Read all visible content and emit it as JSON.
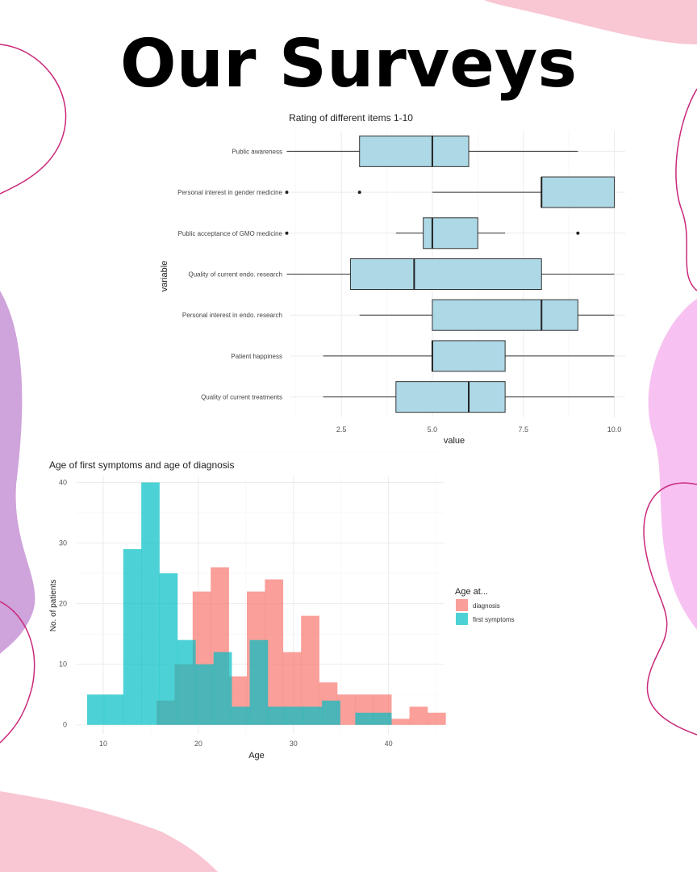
{
  "page": {
    "title": "Our Surveys"
  },
  "colors": {
    "box_fill": "#add8e6",
    "diagnosis": "#f8766d",
    "first_symptoms": "#00bfc4",
    "blob_pink": "#f9c6d3",
    "blob_violet": "#cfa3db",
    "blob_magenta": "#f7c2f1",
    "line_magenta": "#c9287a"
  },
  "chart_data": [
    {
      "type": "boxplot",
      "title": "Rating of different items 1-10",
      "xlabel": "value",
      "ylabel": "variable",
      "xlim": [
        1.1,
        10.3
      ],
      "xticks": [
        "2.5",
        "5.0",
        "7.5",
        "10.0"
      ],
      "grid": true,
      "categories": [
        "Public awareness",
        "Personal interest in gender medicine",
        "Public acceptance of GMO medicine",
        "Quality of current endo. research",
        "Personal interest in endo. research",
        "Patient happiness",
        "Quality of current treatments"
      ],
      "boxes": [
        {
          "whisker_low": 1.0,
          "q1": 3.0,
          "median": 5.0,
          "q3": 6.0,
          "whisker_high": 9.0,
          "outliers": []
        },
        {
          "whisker_low": 5.0,
          "q1": 8.0,
          "median": 8.0,
          "q3": 10.0,
          "whisker_high": 10.0,
          "outliers": [
            1.0,
            3.0
          ]
        },
        {
          "whisker_low": 4.0,
          "q1": 4.75,
          "median": 5.0,
          "q3": 6.25,
          "whisker_high": 7.0,
          "outliers": [
            1.0,
            9.0
          ]
        },
        {
          "whisker_low": 1.0,
          "q1": 2.75,
          "median": 4.5,
          "q3": 8.0,
          "whisker_high": 10.0,
          "outliers": []
        },
        {
          "whisker_low": 3.0,
          "q1": 5.0,
          "median": 8.0,
          "q3": 9.0,
          "whisker_high": 10.0,
          "outliers": []
        },
        {
          "whisker_low": 2.0,
          "q1": 5.0,
          "median": 5.0,
          "q3": 7.0,
          "whisker_high": 10.0,
          "outliers": []
        },
        {
          "whisker_low": 2.0,
          "q1": 4.0,
          "median": 6.0,
          "q3": 7.0,
          "whisker_high": 10.0,
          "outliers": []
        }
      ]
    },
    {
      "type": "histogram",
      "title": "Age of first symptoms and age of diagnosis",
      "xlabel": "Age",
      "ylabel": "No. of patients",
      "xlim": [
        7.2,
        45.8
      ],
      "ylim": [
        -1.5,
        41
      ],
      "xticks": [
        "10",
        "20",
        "30",
        "40"
      ],
      "yticks": [
        "0",
        "10",
        "20",
        "30",
        "40"
      ],
      "grid": true,
      "legend": {
        "title": "Age at...",
        "position": "right"
      },
      "series": [
        {
          "name": "diagnosis",
          "bins": [
            [
              15.6,
              17.5,
              4
            ],
            [
              17.5,
              19.4,
              10
            ],
            [
              19.4,
              21.3,
              22
            ],
            [
              21.3,
              23.2,
              26
            ],
            [
              23.2,
              25.1,
              8
            ],
            [
              25.1,
              27.0,
              22
            ],
            [
              27.0,
              28.9,
              24
            ],
            [
              28.9,
              30.8,
              12
            ],
            [
              30.8,
              32.7,
              18
            ],
            [
              32.7,
              34.6,
              7
            ],
            [
              34.6,
              36.5,
              5
            ],
            [
              36.5,
              38.4,
              5
            ],
            [
              38.4,
              40.3,
              5
            ],
            [
              40.3,
              42.2,
              1
            ],
            [
              42.2,
              44.1,
              3
            ],
            [
              44.1,
              46.0,
              2
            ]
          ]
        },
        {
          "name": "first symptoms",
          "bins": [
            [
              8.3,
              10.2,
              5
            ],
            [
              10.2,
              12.1,
              5
            ],
            [
              12.1,
              14.0,
              29
            ],
            [
              14.0,
              15.9,
              40
            ],
            [
              15.9,
              17.8,
              25
            ],
            [
              17.8,
              19.7,
              14
            ],
            [
              19.7,
              21.6,
              10
            ],
            [
              21.6,
              23.5,
              12
            ],
            [
              23.5,
              25.4,
              3
            ],
            [
              25.4,
              27.3,
              14
            ],
            [
              27.3,
              29.2,
              3
            ],
            [
              29.2,
              31.1,
              3
            ],
            [
              31.1,
              33.0,
              3
            ],
            [
              33.0,
              34.9,
              4
            ],
            [
              36.5,
              38.4,
              2
            ],
            [
              38.4,
              40.3,
              2
            ]
          ]
        }
      ]
    }
  ]
}
